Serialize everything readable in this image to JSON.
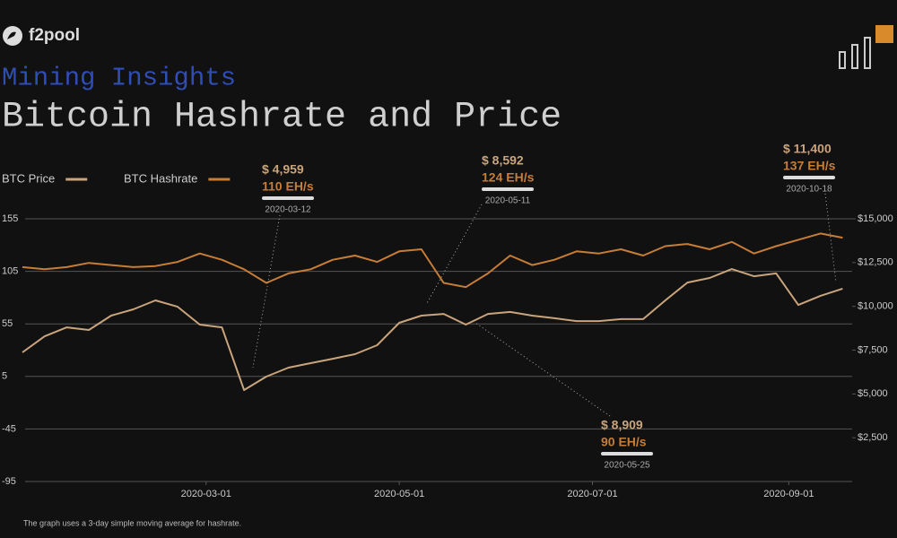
{
  "brand": "f2pool",
  "chart_data": {
    "type": "line",
    "subtitle": "Mining Insights",
    "title": "Bitcoin Hashrate and Price",
    "footnote": "The graph uses a 3-day simple moving average for hashrate.",
    "x": [
      "2020-01-03",
      "2020-01-10",
      "2020-01-17",
      "2020-01-24",
      "2020-01-31",
      "2020-02-07",
      "2020-02-14",
      "2020-02-21",
      "2020-02-28",
      "2020-03-06",
      "2020-03-13",
      "2020-03-20",
      "2020-03-27",
      "2020-04-03",
      "2020-04-10",
      "2020-04-17",
      "2020-04-24",
      "2020-05-01",
      "2020-05-08",
      "2020-05-15",
      "2020-05-22",
      "2020-05-29",
      "2020-06-05",
      "2020-06-12",
      "2020-06-19",
      "2020-06-26",
      "2020-07-03",
      "2020-07-10",
      "2020-07-17",
      "2020-07-24",
      "2020-07-31",
      "2020-08-07",
      "2020-08-14",
      "2020-08-21",
      "2020-08-28",
      "2020-09-04",
      "2020-09-11",
      "2020-09-18"
    ],
    "xlim": [
      "2020-01-03",
      "2020-09-21"
    ],
    "xticks": [
      "2020-03-01",
      "2020-05-01",
      "2020-07-01",
      "2020-09-01"
    ],
    "ylim": [
      -95,
      155
    ],
    "yticks": [
      155,
      105,
      55,
      5,
      -45,
      -95
    ],
    "y2lim": [
      0,
      15000
    ],
    "y2ticks": [
      {
        "value": 15000,
        "label": "$15,000"
      },
      {
        "value": 12500,
        "label": "$12,500"
      },
      {
        "value": 10000,
        "label": "$10,000"
      },
      {
        "value": 7500,
        "label": "$7,500"
      },
      {
        "value": 5000,
        "label": "$5,000"
      },
      {
        "value": 2500,
        "label": "$2,500"
      }
    ],
    "grid": true,
    "series": [
      {
        "name": "BTC Price",
        "color": "#c9a47c",
        "axis": "y2",
        "values": [
          7370,
          8290,
          8800,
          8650,
          9470,
          9830,
          10340,
          9980,
          8960,
          8800,
          5220,
          5990,
          6500,
          6760,
          7010,
          7270,
          7780,
          9060,
          9470,
          9570,
          8960,
          9570,
          9680,
          9470,
          9320,
          9160,
          9160,
          9270,
          9270,
          10340,
          11360,
          11620,
          12130,
          11720,
          11880,
          10080,
          10600,
          11010
        ]
      },
      {
        "name": "BTC Hashrate",
        "color": "#c77d36",
        "values": [
          109,
          107,
          109,
          113,
          111,
          109,
          110,
          114,
          122,
          116,
          107,
          94,
          103,
          107,
          116,
          120,
          114,
          124,
          126,
          94,
          90,
          103,
          120,
          111,
          116,
          124,
          122,
          126,
          120,
          129,
          131,
          126,
          133,
          122,
          129,
          135,
          141,
          137
        ]
      }
    ],
    "annotations": [
      {
        "price": "$ 4,959",
        "hashrate": "110 EH/s",
        "date": "2020-03-12"
      },
      {
        "price": "$ 8,592",
        "hashrate": "124 EH/s",
        "date": "2020-05-11"
      },
      {
        "price": "$ 11,400",
        "hashrate": "137 EH/s",
        "date": "2020-10-18"
      },
      {
        "price": "$ 8,909",
        "hashrate": "90 EH/s",
        "date": "2020-05-25"
      }
    ]
  }
}
